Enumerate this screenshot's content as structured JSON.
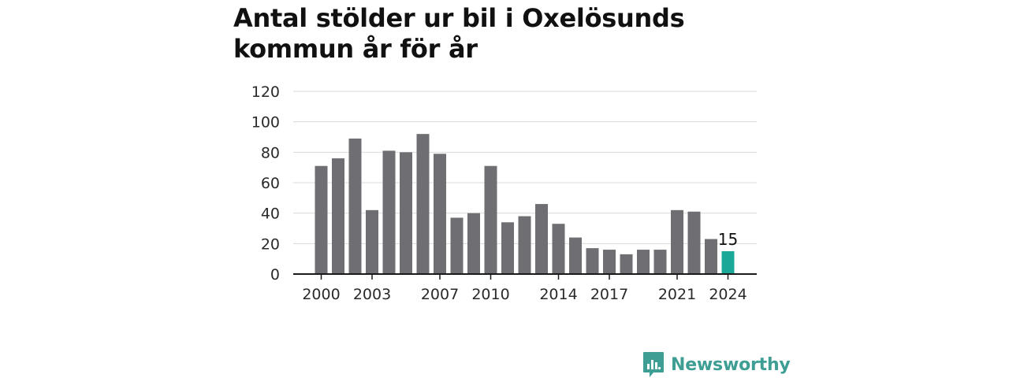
{
  "title_lines": [
    "Antal stölder ur bil i Oxelösunds",
    "kommun år för år"
  ],
  "brand": "Newsworthy",
  "colors": {
    "bar": "#6f6f73",
    "highlight": "#1aa899",
    "grid": "#d9d9d9",
    "axis": "#1a1a1a",
    "brand": "#3e9e94"
  },
  "chart_data": {
    "type": "bar",
    "title": "Antal stölder ur bil i Oxelösunds kommun år för år",
    "xlabel": "",
    "ylabel": "",
    "ylim": [
      0,
      120
    ],
    "yticks": [
      0,
      20,
      40,
      60,
      80,
      100,
      120
    ],
    "grid": true,
    "categories": [
      2000,
      2001,
      2002,
      2003,
      2004,
      2005,
      2006,
      2007,
      2008,
      2009,
      2010,
      2011,
      2012,
      2013,
      2014,
      2015,
      2016,
      2017,
      2018,
      2019,
      2020,
      2021,
      2022,
      2023,
      2024
    ],
    "values": [
      71,
      76,
      89,
      42,
      81,
      80,
      92,
      79,
      37,
      40,
      71,
      34,
      38,
      46,
      33,
      24,
      17,
      16,
      13,
      16,
      16,
      42,
      41,
      23,
      15
    ],
    "xtick_labels": [
      2000,
      2003,
      2007,
      2010,
      2014,
      2017,
      2021,
      2024
    ],
    "highlight_category": 2024,
    "data_labels": [
      {
        "category": 2024,
        "text": "15"
      }
    ]
  }
}
